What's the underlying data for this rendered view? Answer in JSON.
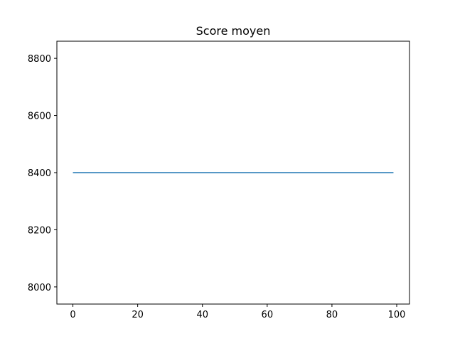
{
  "chart_data": {
    "type": "line",
    "title": "Score moyen",
    "xlabel": "",
    "ylabel": "",
    "xlim": [
      -4.95,
      103.95
    ],
    "ylim": [
      7940,
      8860
    ],
    "xticks": [
      0,
      20,
      40,
      60,
      80,
      100
    ],
    "yticks": [
      8000,
      8200,
      8400,
      8600,
      8800
    ],
    "grid": false,
    "series": [
      {
        "color": "#1f77b4",
        "x": [
          0,
          99
        ],
        "y": [
          8400,
          8400
        ]
      }
    ]
  }
}
